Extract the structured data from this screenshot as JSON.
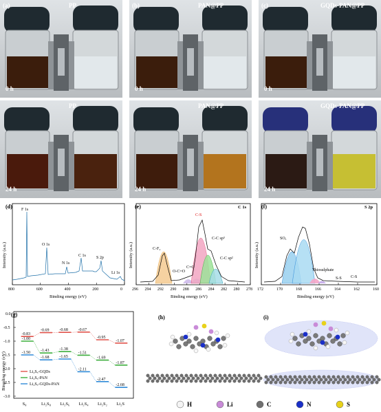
{
  "photos": [
    {
      "label": "(a)",
      "title": "PP",
      "time": "0 h",
      "left": "#3b1d0c",
      "right": "#e2e8eb",
      "cap": "#1f2a30"
    },
    {
      "label": "(b)",
      "title": "PAN@PP",
      "time": "0 h",
      "left": "#3b1d0c",
      "right": "#e2e8eb",
      "cap": "#1f2a30"
    },
    {
      "label": "(c)",
      "title": "GQDs-PAN@PP",
      "time": "0 h",
      "left": "#3b1d0c",
      "right": "#e2e8eb",
      "cap": "#1f2a30"
    },
    {
      "label": "",
      "title": "PP",
      "time": "24 h",
      "left": "#4a1a0c",
      "right": "#4a220e",
      "cap": "#1f2a30"
    },
    {
      "label": "",
      "title": "PAN@PP",
      "time": "24 h",
      "left": "#3e1c0c",
      "right": "#b3741e",
      "cap": "#1f2a30"
    },
    {
      "label": "",
      "title": "GQDs-PAN@PP",
      "time": "24 h",
      "left": "#2b1a14",
      "right": "#c6bf33",
      "cap": "#27307a"
    }
  ],
  "panel_d": {
    "label": "(d)",
    "xlabel": "Binding energy (eV)",
    "ylabel": "Intensity (a.u.)",
    "ticks": [
      "800",
      "600",
      "400",
      "200",
      "0"
    ],
    "peaks": [
      "F 1s",
      "O 1s",
      "N 1s",
      "C 1s",
      "S 2p",
      "Li 1s"
    ]
  },
  "panel_e": {
    "label": "(e)",
    "corner": "C 1s",
    "xlabel": "Binding energy (eV)",
    "ylabel": "Intensity (a.u.)",
    "ticks": [
      "296",
      "294",
      "292",
      "290",
      "288",
      "286",
      "284",
      "282",
      "280",
      "278"
    ],
    "annotations": [
      "C-F₂",
      "C-S",
      "C-C sp³",
      "C-C sp²",
      "O-C=O",
      "C=O"
    ]
  },
  "panel_f": {
    "label": "(f)",
    "corner": "S 2p",
    "xlabel": "Binding energy (eV)",
    "ylabel": "Intensity (a.u.)",
    "ticks": [
      "172",
      "170",
      "168",
      "166",
      "164",
      "162",
      "160"
    ],
    "annotations": [
      "SOₓ",
      "Thiosulphate",
      "S-S",
      "C-S"
    ]
  },
  "panel_g": {
    "label": "(g)",
    "ylabel": "Bingding energy (eV)",
    "yticks": [
      "0.0",
      "-0.5",
      "-1.0",
      "-1.5",
      "-2.0",
      "-2.5",
      "-3.0"
    ],
    "legend": [
      "Li₂Sₓ-GQDs",
      "Li₂Sₓ-PAN",
      "Li₂Sₓ-GQDs-PAN"
    ],
    "colors": [
      "#e0524a",
      "#3cae3c",
      "#2f8ad8"
    ]
  },
  "chart_data": {
    "type": "line",
    "categories": [
      "S₈",
      "Li₂S₈",
      "Li₂S₆",
      "Li₂S₄",
      "Li₂S₂",
      "Li₂S"
    ],
    "series": [
      {
        "name": "Li₂Sₓ-GQDs",
        "values": [
          -0.83,
          -0.69,
          -0.68,
          -0.67,
          -0.95,
          -1.07
        ]
      },
      {
        "name": "Li₂Sₓ-PAN",
        "values": [
          -1.0,
          -1.43,
          -1.38,
          -1.51,
          -1.69,
          -1.87
        ]
      },
      {
        "name": "Li₂Sₓ-GQDs-PAN",
        "values": [
          -1.5,
          -1.68,
          -1.65,
          -2.11,
          -2.47,
          -2.68
        ]
      }
    ],
    "ylabel": "Bingding energy (eV)",
    "ylim": [
      -3.0,
      0.0
    ]
  },
  "panel_h": {
    "label": "(h)"
  },
  "panel_i": {
    "label": "(i)"
  },
  "legend_atoms": [
    {
      "sym": "H",
      "color": "#f4f4f4"
    },
    {
      "sym": "Li",
      "color": "#c98bd8"
    },
    {
      "sym": "C",
      "color": "#707070"
    },
    {
      "sym": "N",
      "color": "#1a2fc8"
    },
    {
      "sym": "S",
      "color": "#e8d21a"
    }
  ]
}
